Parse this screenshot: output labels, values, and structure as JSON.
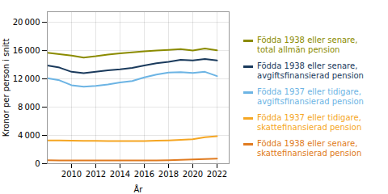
{
  "chart_data": {
    "type": "line",
    "x": [
      2008,
      2009,
      2010,
      2011,
      2012,
      2013,
      2014,
      2015,
      2016,
      2017,
      2018,
      2019,
      2020,
      2021,
      2022
    ],
    "series": [
      {
        "name": "Födda 1938 eller senare,\ntotal allmän pension",
        "color": "#8b8b00",
        "values": [
          15700,
          15500,
          15300,
          15000,
          15200,
          15450,
          15600,
          15750,
          15900,
          16000,
          16100,
          16200,
          16000,
          16300,
          16050
        ]
      },
      {
        "name": "Födda 1938 eller senare,\navgiftsfinansierad pension",
        "color": "#1a3a5c",
        "values": [
          13900,
          13600,
          13000,
          12800,
          13000,
          13200,
          13350,
          13550,
          13900,
          14200,
          14400,
          14700,
          14600,
          14800,
          14600
        ]
      },
      {
        "name": "Födda 1937 eller tidigare,\navgiftsfinansierad pension",
        "color": "#6cb4e4",
        "values": [
          12100,
          11800,
          11100,
          10900,
          11000,
          11200,
          11500,
          11700,
          12200,
          12600,
          12900,
          12950,
          12850,
          13000,
          12400
        ]
      },
      {
        "name": "Födda 1937 eller tidigare,\nskattefinansierad pension",
        "color": "#f5a623",
        "values": [
          3300,
          3280,
          3260,
          3240,
          3220,
          3210,
          3200,
          3200,
          3210,
          3250,
          3300,
          3380,
          3470,
          3750,
          3900
        ]
      },
      {
        "name": "Födda 1938 eller senare,\nskattefinansierad pension",
        "color": "#e07b20",
        "values": [
          480,
          470,
          460,
          455,
          450,
          445,
          445,
          445,
          450,
          465,
          490,
          530,
          590,
          660,
          720
        ]
      }
    ],
    "xlabel": "År",
    "ylabel": "Kronor per person i snitt",
    "xlim": [
      2008,
      2023
    ],
    "ylim": [
      0,
      21500
    ],
    "xticks": [
      2010,
      2012,
      2014,
      2016,
      2018,
      2020,
      2022
    ],
    "yticks": [
      0,
      {
        "value": 4000,
        "label": "4 000"
      },
      {
        "value": 8000,
        "label": "8 000"
      },
      {
        "value": 12000,
        "label": "12 000"
      },
      {
        "value": 16000,
        "label": "16 000"
      },
      {
        "value": 20000,
        "label": "20 000"
      }
    ],
    "grid": true,
    "legend": "right"
  }
}
